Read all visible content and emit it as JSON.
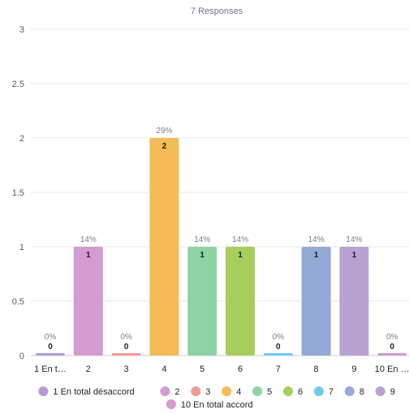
{
  "chart_data": {
    "type": "bar",
    "title": "7 Responses",
    "categories": [
      "1 En t…",
      "2",
      "3",
      "4",
      "5",
      "6",
      "7",
      "8",
      "9",
      "10 En …"
    ],
    "values": [
      0,
      1,
      0,
      2,
      1,
      1,
      0,
      1,
      1,
      0
    ],
    "percent_labels": [
      "0%",
      "14%",
      "0%",
      "29%",
      "14%",
      "14%",
      "0%",
      "14%",
      "14%",
      "0%"
    ],
    "colors": [
      "#b49bd0",
      "#d39bcf",
      "#f19a93",
      "#f5bb57",
      "#8fd3a5",
      "#a6ce5d",
      "#6fc8ee",
      "#93aad6",
      "#b9a1d2",
      "#d39bcf"
    ],
    "ylim": [
      0,
      3
    ],
    "yticks": [
      "0",
      "0.5",
      "1",
      "1.5",
      "2",
      "2.5",
      "3"
    ],
    "grid": true,
    "legend_position": "bottom",
    "legend": [
      "1 En total désaccord",
      "2",
      "3",
      "4",
      "5",
      "6",
      "7",
      "8",
      "9",
      "10 En total accord"
    ],
    "xlabel": "",
    "ylabel": ""
  }
}
